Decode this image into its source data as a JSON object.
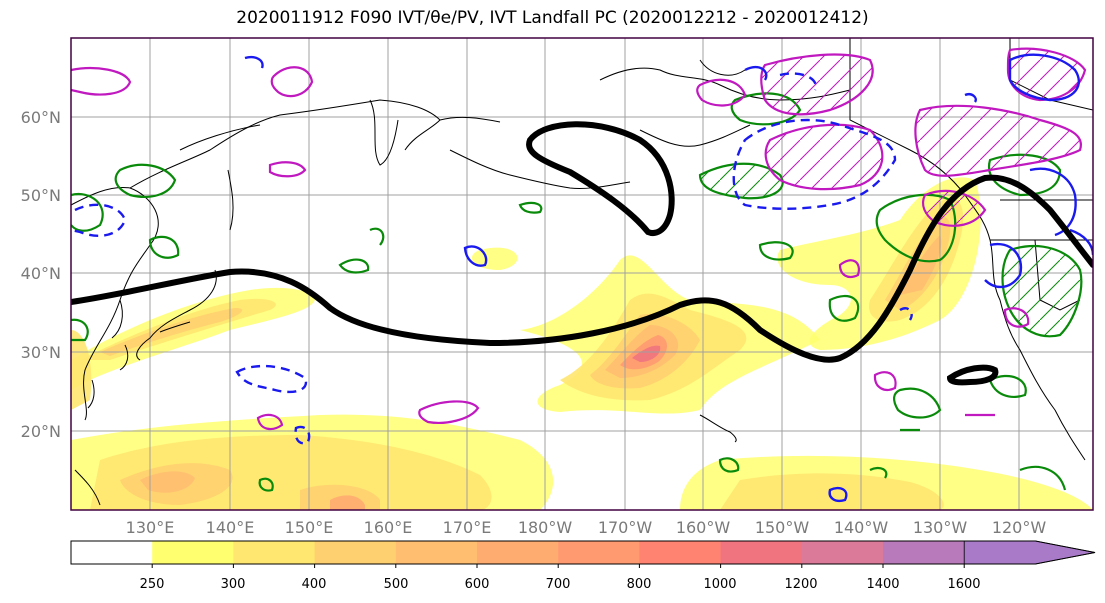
{
  "title": "2020011912 F090 IVT/θe/PV, IVT Landfall PC (2020012212 - 2020012412)",
  "colors": {
    "ivt_fill": [
      "#ffffff",
      "#ffff70",
      "#ffe770",
      "#ffd070",
      "#ffbe70",
      "#ffac70",
      "#ff9a70",
      "#ff8370",
      "#f07480",
      "#dc7a9a",
      "#b87aba",
      "#a87ac8"
    ],
    "green_contour": "#0a8a0a",
    "blue_contour": "#1a1aee",
    "magenta_contour": "#c019c0",
    "black_contour": "#000000",
    "coast": "#000000",
    "grid": "#a0a0a0",
    "frame": "#400040"
  },
  "map": {
    "lat_labels": [
      "60°N",
      "50°N",
      "40°N",
      "30°N",
      "20°N"
    ],
    "lon_labels": [
      "130°E",
      "140°E",
      "150°E",
      "160°E",
      "170°E",
      "180°W",
      "170°W",
      "160°W",
      "150°W",
      "140°W",
      "130°W",
      "120°W"
    ]
  },
  "colorbar": {
    "ticks": [
      "250",
      "300",
      "400",
      "500",
      "600",
      "700",
      "800",
      "1000",
      "1200",
      "1400",
      "1600"
    ]
  }
}
